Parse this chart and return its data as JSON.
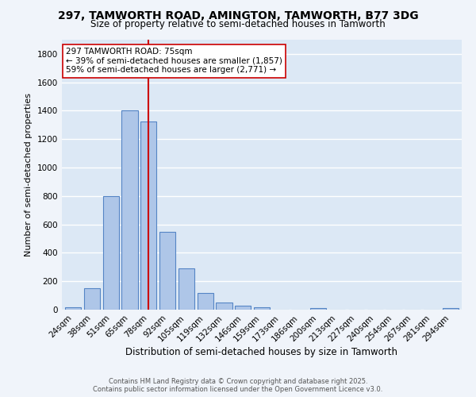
{
  "title_line1": "297, TAMWORTH ROAD, AMINGTON, TAMWORTH, B77 3DG",
  "title_line2": "Size of property relative to semi-detached houses in Tamworth",
  "xlabel": "Distribution of semi-detached houses by size in Tamworth",
  "ylabel": "Number of semi-detached properties",
  "categories": [
    "24sqm",
    "38sqm",
    "51sqm",
    "65sqm",
    "78sqm",
    "92sqm",
    "105sqm",
    "119sqm",
    "132sqm",
    "146sqm",
    "159sqm",
    "173sqm",
    "186sqm",
    "200sqm",
    "213sqm",
    "227sqm",
    "240sqm",
    "254sqm",
    "267sqm",
    "281sqm",
    "294sqm"
  ],
  "values": [
    15,
    150,
    800,
    1400,
    1325,
    550,
    290,
    120,
    50,
    30,
    15,
    0,
    0,
    10,
    0,
    0,
    0,
    0,
    0,
    0,
    10
  ],
  "bar_color": "#aec6e8",
  "bar_edge_color": "#5585c5",
  "vline_x_index": 4,
  "vline_color": "#cc0000",
  "annotation_text": "297 TAMWORTH ROAD: 75sqm\n← 39% of semi-detached houses are smaller (1,857)\n59% of semi-detached houses are larger (2,771) →",
  "annotation_box_color": "#ffffff",
  "annotation_box_edge": "#cc0000",
  "ylim": [
    0,
    1900
  ],
  "yticks": [
    0,
    200,
    400,
    600,
    800,
    1000,
    1200,
    1400,
    1600,
    1800
  ],
  "fig_bg_color": "#f0f4fa",
  "ax_bg_color": "#dce8f5",
  "grid_color": "#ffffff",
  "footer_line1": "Contains HM Land Registry data © Crown copyright and database right 2025.",
  "footer_line2": "Contains public sector information licensed under the Open Government Licence v3.0."
}
